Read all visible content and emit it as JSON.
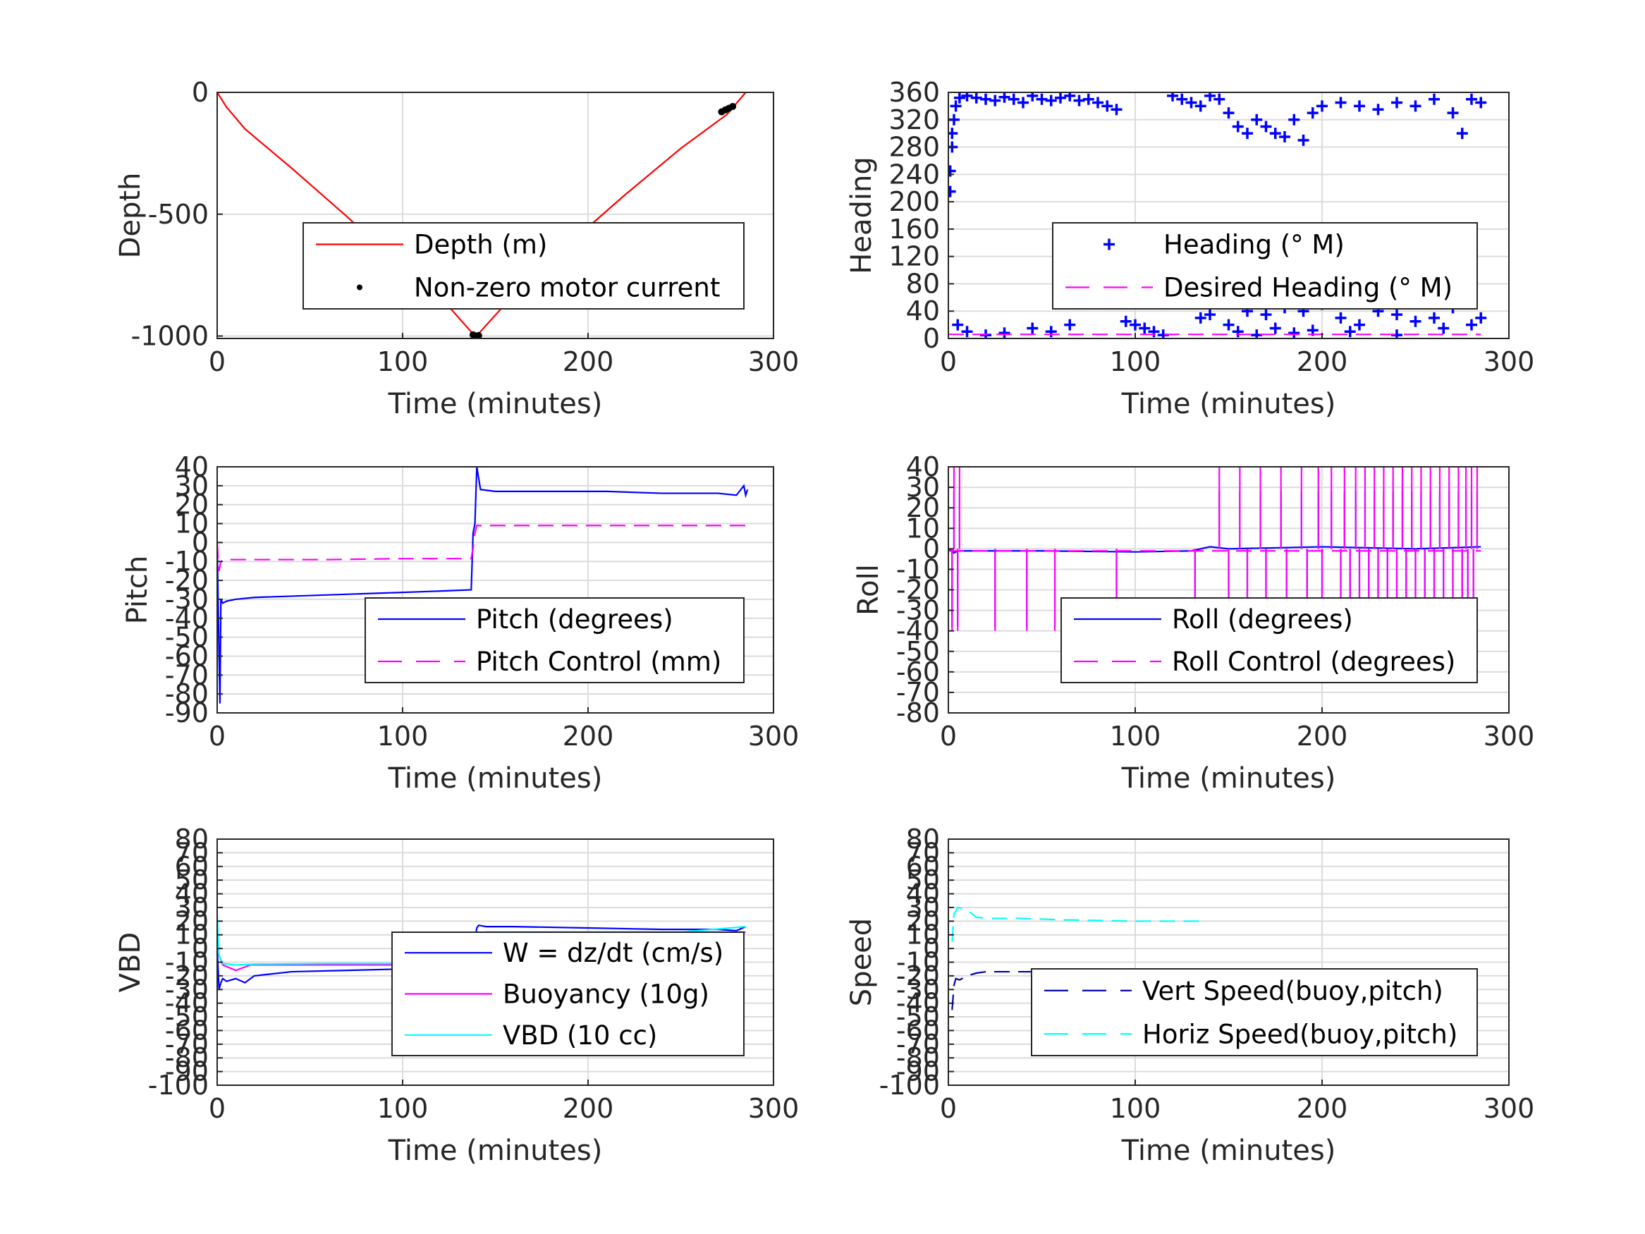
{
  "chart_data": [
    {
      "id": "depth",
      "type": "line",
      "xlabel": "Time (minutes)",
      "ylabel": "Depth",
      "xlim": [
        0,
        300
      ],
      "ylim": [
        -1010,
        0
      ],
      "xticks": [
        "0",
        "100",
        "200",
        "300"
      ],
      "yticks": [
        [
          "0",
          0
        ],
        [
          "-500",
          -500
        ],
        [
          "-1000",
          -1000
        ]
      ],
      "legend": "center-right",
      "series": [
        {
          "name": "Depth (m)",
          "color": "#ff0000",
          "style": "solid",
          "x": [
            0,
            5,
            15,
            40,
            70,
            100,
            125,
            139,
            141,
            160,
            190,
            220,
            250,
            275,
            285
          ],
          "y": [
            0,
            -60,
            -150,
            -310,
            -510,
            -720,
            -880,
            -1000,
            -990,
            -830,
            -620,
            -420,
            -230,
            -90,
            0
          ]
        },
        {
          "name": "Non-zero motor current",
          "color": "#000000",
          "style": "dots",
          "x": [
            138,
            139,
            140,
            141,
            272,
            274,
            276,
            278
          ],
          "y": [
            -995,
            -1000,
            -1000,
            -998,
            -80,
            -72,
            -65,
            -58
          ]
        }
      ]
    },
    {
      "id": "heading",
      "type": "scatter",
      "xlabel": "Time (minutes)",
      "ylabel": "Heading",
      "xlim": [
        0,
        300
      ],
      "ylim": [
        0,
        360
      ],
      "xticks": [
        "0",
        "100",
        "200",
        "300"
      ],
      "yticks": [
        [
          "0",
          0
        ],
        [
          "40",
          40
        ],
        [
          "80",
          80
        ],
        [
          "120",
          120
        ],
        [
          "160",
          160
        ],
        [
          "200",
          200
        ],
        [
          "240",
          240
        ],
        [
          "280",
          280
        ],
        [
          "320",
          320
        ],
        [
          "360",
          360
        ]
      ],
      "legend": "center-right",
      "series": [
        {
          "name": "Heading (° M)",
          "color": "#0000ff",
          "style": "plus",
          "x": [
            1,
            1,
            2,
            2,
            3,
            4,
            6,
            10,
            15,
            20,
            25,
            30,
            35,
            40,
            45,
            50,
            55,
            60,
            65,
            70,
            75,
            80,
            85,
            90,
            120,
            125,
            130,
            135,
            140,
            145,
            150,
            155,
            160,
            165,
            170,
            175,
            180,
            185,
            190,
            195,
            200,
            210,
            220,
            230,
            240,
            250,
            260,
            270,
            275,
            280,
            285,
            5,
            10,
            20,
            30,
            45,
            55,
            65,
            95,
            100,
            105,
            110,
            115,
            135,
            140,
            150,
            160,
            170,
            180,
            190,
            200,
            210,
            220,
            230,
            240,
            250,
            260,
            270,
            280,
            285,
            155,
            165,
            175,
            185,
            195,
            215,
            240,
            265
          ],
          "y": [
            215,
            245,
            280,
            300,
            320,
            340,
            352,
            355,
            352,
            350,
            348,
            353,
            350,
            345,
            355,
            350,
            348,
            352,
            355,
            348,
            350,
            345,
            340,
            335,
            355,
            350,
            345,
            340,
            355,
            350,
            330,
            310,
            300,
            320,
            310,
            300,
            295,
            320,
            290,
            330,
            340,
            345,
            340,
            335,
            345,
            340,
            350,
            330,
            300,
            350,
            345,
            20,
            10,
            5,
            8,
            15,
            10,
            20,
            25,
            20,
            15,
            10,
            5,
            30,
            35,
            20,
            40,
            35,
            45,
            40,
            50,
            30,
            20,
            40,
            35,
            25,
            30,
            45,
            20,
            30,
            10,
            5,
            15,
            8,
            12,
            10,
            5,
            15
          ]
        },
        {
          "name": "Desired Heading (° M)",
          "color": "#ff00ff",
          "style": "dashed",
          "x": [
            0,
            285
          ],
          "y": [
            6,
            6
          ]
        }
      ]
    },
    {
      "id": "pitch",
      "type": "line",
      "xlabel": "Time (minutes)",
      "ylabel": "Pitch",
      "xlim": [
        0,
        300
      ],
      "ylim": [
        -90,
        40
      ],
      "xticks": [
        "0",
        "100",
        "200",
        "300"
      ],
      "yticks": [
        [
          "-90",
          -90
        ],
        [
          "-80",
          -80
        ],
        [
          "-70",
          -70
        ],
        [
          "-60",
          -60
        ],
        [
          "-50",
          -50
        ],
        [
          "-40",
          -40
        ],
        [
          "-30",
          -30
        ],
        [
          "-20",
          -20
        ],
        [
          "-10",
          -10
        ],
        [
          "0",
          0
        ],
        [
          "10",
          10
        ],
        [
          "20",
          20
        ],
        [
          "30",
          30
        ],
        [
          "40",
          40
        ]
      ],
      "legend": "center-right",
      "series": [
        {
          "name": "Pitch (degrees)",
          "color": "#0000ff",
          "style": "solid",
          "x": [
            0,
            1,
            1.5,
            2,
            3,
            5,
            10,
            20,
            50,
            80,
            110,
            137,
            138,
            139,
            140,
            142,
            150,
            180,
            210,
            240,
            270,
            280,
            284,
            285,
            286
          ],
          "y": [
            0,
            -60,
            -85,
            -30,
            -32,
            -31,
            -30,
            -29,
            -28,
            -27,
            -26,
            -25,
            5,
            10,
            40,
            28,
            27,
            27,
            27,
            26,
            26,
            25,
            30,
            25,
            28
          ]
        },
        {
          "name": "Pitch Control (mm)",
          "color": "#ff00ff",
          "style": "dashed",
          "x": [
            0,
            1,
            2,
            5,
            30,
            60,
            100,
            137,
            138,
            139,
            140,
            160,
            200,
            240,
            285
          ],
          "y": [
            0,
            -15,
            -10,
            -9,
            -9,
            -9,
            -8.5,
            -8.5,
            -3,
            5,
            9,
            9,
            9,
            9,
            9
          ]
        }
      ]
    },
    {
      "id": "roll",
      "type": "line",
      "xlabel": "Time (minutes)",
      "ylabel": "Roll",
      "xlim": [
        0,
        300
      ],
      "ylim": [
        -80,
        40
      ],
      "xticks": [
        "0",
        "100",
        "200",
        "300"
      ],
      "yticks": [
        [
          "-80",
          -80
        ],
        [
          "-70",
          -70
        ],
        [
          "-60",
          -60
        ],
        [
          "-50",
          -50
        ],
        [
          "-40",
          -40
        ],
        [
          "-30",
          -30
        ],
        [
          "-20",
          -20
        ],
        [
          "-10",
          -10
        ],
        [
          "0",
          0
        ],
        [
          "10",
          10
        ],
        [
          "20",
          20
        ],
        [
          "30",
          30
        ],
        [
          "40",
          40
        ]
      ],
      "legend": "center-right",
      "spikes": {
        "down_times": [
          2,
          5,
          25,
          42,
          57,
          90,
          132,
          150,
          160,
          170,
          181,
          192,
          200,
          210,
          215,
          220,
          225,
          230,
          235,
          240,
          245,
          250,
          255,
          260,
          265,
          270,
          275,
          278,
          281
        ],
        "up_times": [
          3,
          6,
          145,
          156,
          167,
          178,
          189,
          198,
          205,
          212,
          218,
          223,
          228,
          233,
          238,
          243,
          248,
          253,
          258,
          263,
          268,
          273,
          277,
          280,
          283
        ]
      },
      "series": [
        {
          "name": "Roll (degrees)",
          "color": "#0000ff",
          "style": "solid",
          "x": [
            0,
            3,
            5,
            10,
            50,
            100,
            130,
            135,
            140,
            150,
            200,
            250,
            285
          ],
          "y": [
            0,
            -2,
            -1,
            -1,
            -1,
            -1.5,
            -1,
            0,
            1,
            0,
            1,
            0,
            1
          ],
          "spike_min": -38,
          "spike_max": 28
        },
        {
          "name": "Roll Control (degrees)",
          "color": "#ff00ff",
          "style": "dashed",
          "x": [
            0,
            285
          ],
          "y": [
            -1,
            -1
          ],
          "spike_min": -40,
          "spike_max": 40
        }
      ]
    },
    {
      "id": "vbd",
      "type": "line",
      "xlabel": "Time (minutes)",
      "ylabel": "VBD",
      "xlim": [
        0,
        300
      ],
      "ylim": [
        -100,
        80
      ],
      "xticks": [
        "0",
        "100",
        "200",
        "300"
      ],
      "yticks": [
        [
          "-100",
          -100
        ],
        [
          "-90",
          -90
        ],
        [
          "-80",
          -80
        ],
        [
          "-70",
          -70
        ],
        [
          "-60",
          -60
        ],
        [
          "-50",
          -50
        ],
        [
          "-40",
          -40
        ],
        [
          "-30",
          -30
        ],
        [
          "-20",
          -20
        ],
        [
          "-10",
          -10
        ],
        [
          "0",
          0
        ],
        [
          "10",
          10
        ],
        [
          "20",
          20
        ],
        [
          "30",
          30
        ],
        [
          "40",
          40
        ],
        [
          "50",
          50
        ],
        [
          "60",
          60
        ],
        [
          "70",
          70
        ],
        [
          "80",
          80
        ]
      ],
      "legend": "center-right",
      "series": [
        {
          "name": "W = dz/dt (cm/s)",
          "color": "#0000ff",
          "style": "solid",
          "x": [
            0,
            1,
            2,
            3,
            5,
            10,
            15,
            20,
            40,
            70,
            100,
            120,
            138,
            139,
            140,
            141,
            145,
            160,
            200,
            240,
            270,
            280,
            285
          ],
          "y": [
            0,
            -30,
            -25,
            -22,
            -24,
            -22,
            -25,
            -20,
            -17,
            -16,
            -15,
            -15,
            -14,
            5,
            15,
            17,
            16,
            16,
            15,
            14,
            14,
            13,
            16
          ]
        },
        {
          "name": "Buoyancy (10g)",
          "color": "#ff00ff",
          "style": "solid",
          "x": [
            0,
            1,
            3,
            10,
            18,
            40,
            100,
            138,
            140,
            145,
            200,
            285
          ],
          "y": [
            5,
            -5,
            -12,
            -16,
            -12,
            -12,
            -12,
            -12,
            10,
            12,
            12,
            12
          ]
        },
        {
          "name": "VBD (10 cc)",
          "color": "#00ffff",
          "style": "solid",
          "x": [
            0,
            1,
            3,
            10,
            20,
            60,
            100,
            138,
            140,
            145,
            200,
            250,
            285
          ],
          "y": [
            25,
            -5,
            -11,
            -12,
            -11.5,
            -11,
            -11,
            -11,
            10,
            12,
            12,
            12,
            16
          ]
        }
      ]
    },
    {
      "id": "speed",
      "type": "line",
      "xlabel": "Time (minutes)",
      "ylabel": "Speed",
      "xlim": [
        0,
        300
      ],
      "ylim": [
        -100,
        80
      ],
      "xticks": [
        "0",
        "100",
        "200",
        "300"
      ],
      "yticks": [
        [
          "-100",
          -100
        ],
        [
          "-90",
          -90
        ],
        [
          "-80",
          -80
        ],
        [
          "-70",
          -70
        ],
        [
          "-60",
          -60
        ],
        [
          "-50",
          -50
        ],
        [
          "-40",
          -40
        ],
        [
          "-30",
          -30
        ],
        [
          "-20",
          -20
        ],
        [
          "-10",
          -10
        ],
        [
          "0",
          0
        ],
        [
          "10",
          10
        ],
        [
          "20",
          20
        ],
        [
          "30",
          30
        ],
        [
          "40",
          40
        ],
        [
          "50",
          50
        ],
        [
          "60",
          60
        ],
        [
          "70",
          70
        ],
        [
          "80",
          80
        ]
      ],
      "legend": "center-right",
      "series": [
        {
          "name": "Vert Speed(buoy,pitch)",
          "color": "#0000aa",
          "style": "dashed",
          "x": [
            2,
            3,
            4,
            6,
            10,
            15,
            20,
            40,
            60,
            100,
            120,
            138
          ],
          "y": [
            -45,
            -27,
            -22,
            -23,
            -20,
            -18,
            -17,
            -17,
            -17,
            -16,
            -16,
            -16
          ]
        },
        {
          "name": "Horiz Speed(buoy,pitch)",
          "color": "#00ffff",
          "style": "dashed",
          "x": [
            2,
            3,
            5,
            10,
            15,
            20,
            40,
            60,
            100,
            120,
            138
          ],
          "y": [
            5,
            25,
            30,
            28,
            23,
            22,
            22,
            21,
            20,
            20,
            20
          ]
        }
      ]
    }
  ]
}
